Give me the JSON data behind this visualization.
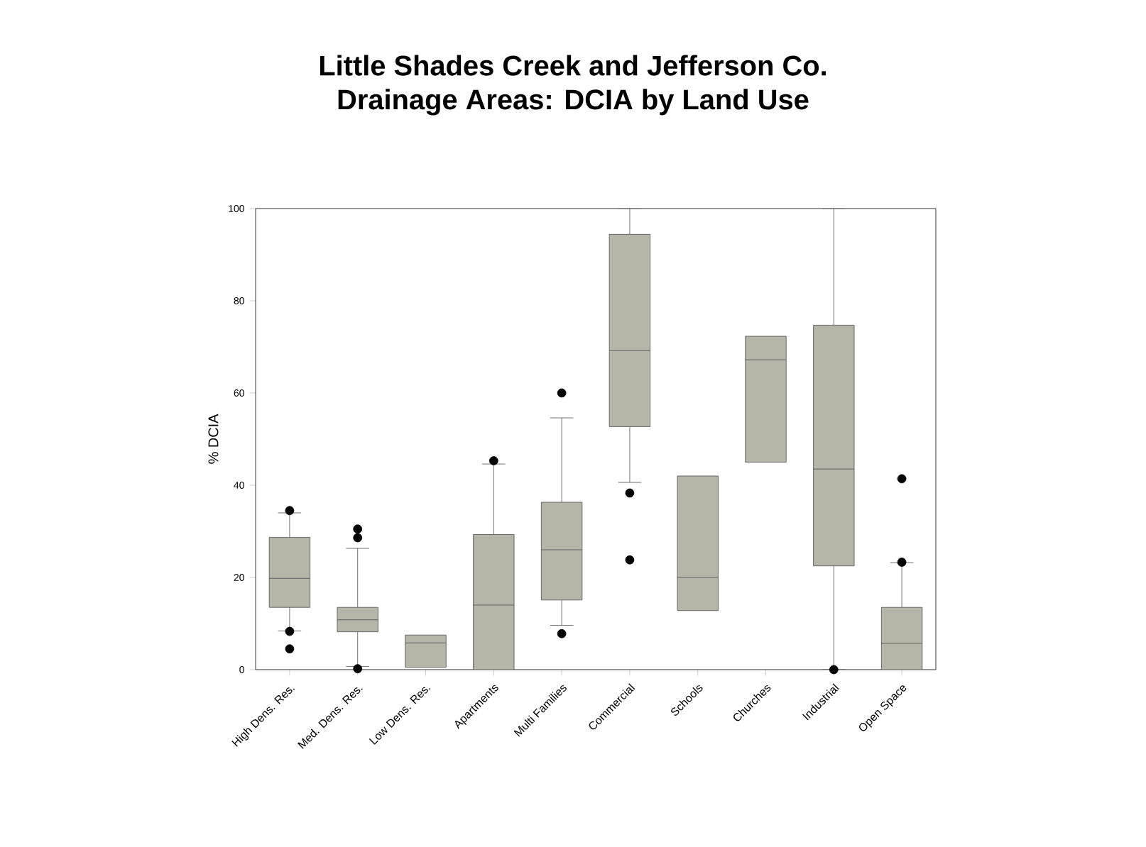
{
  "chart_data": {
    "type": "box",
    "title": "Little Shades Creek and Jefferson Co.\nDrainage Areas: DCIA by Land Use",
    "ylabel": "% DCIA",
    "categories": [
      "High Dens. Res.",
      "Med. Dens. Res.",
      "Low Dens. Res.",
      "Apartments",
      "Multi Families",
      "Commercial",
      "Schools",
      "Churches",
      "Industrial",
      "Open Space"
    ],
    "color": "#b5b5a8",
    "ylim": [
      0,
      100
    ],
    "yticks": [
      0,
      20,
      40,
      60,
      80,
      100
    ],
    "marker": "circle",
    "boxes": [
      {
        "low": 8.4,
        "q1": 13.5,
        "median": 19.8,
        "q3": 28.7,
        "high": 34,
        "outliers": [
          34.5,
          8.3,
          4.5
        ]
      },
      {
        "low": 0.7,
        "q1": 8.2,
        "median": 10.8,
        "q3": 13.5,
        "high": 26.3,
        "outliers": [
          30.5,
          28.6,
          0.2
        ]
      },
      {
        "low": 0.5,
        "q1": 0.5,
        "median": 5.8,
        "q3": 7.5,
        "high": 7.5
      },
      {
        "low": 0,
        "q1": 0,
        "median": 14,
        "q3": 29.3,
        "high": 44.6,
        "outliers": [
          45.3
        ]
      },
      {
        "low": 9.6,
        "q1": 15.1,
        "median": 26,
        "q3": 36.3,
        "high": 54.6,
        "outliers": [
          60,
          7.8
        ]
      },
      {
        "low": 40.6,
        "q1": 52.7,
        "median": 69.2,
        "q3": 94.4,
        "high": 100,
        "outliers": [
          38.3,
          23.8
        ]
      },
      {
        "low": 12.8,
        "q1": 12.8,
        "median": 20,
        "q3": 42,
        "high": 42
      },
      {
        "low": 45,
        "q1": 45,
        "median": 67.2,
        "q3": 72.3,
        "high": 72.3
      },
      {
        "low": 0,
        "q1": 22.5,
        "median": 43.5,
        "q3": 74.7,
        "high": 100,
        "outliers": [
          0
        ]
      },
      {
        "low": 0,
        "q1": 0,
        "median": 5.7,
        "q3": 13.5,
        "high": 23.2,
        "outliers": [
          23.3,
          41.4
        ]
      }
    ]
  }
}
